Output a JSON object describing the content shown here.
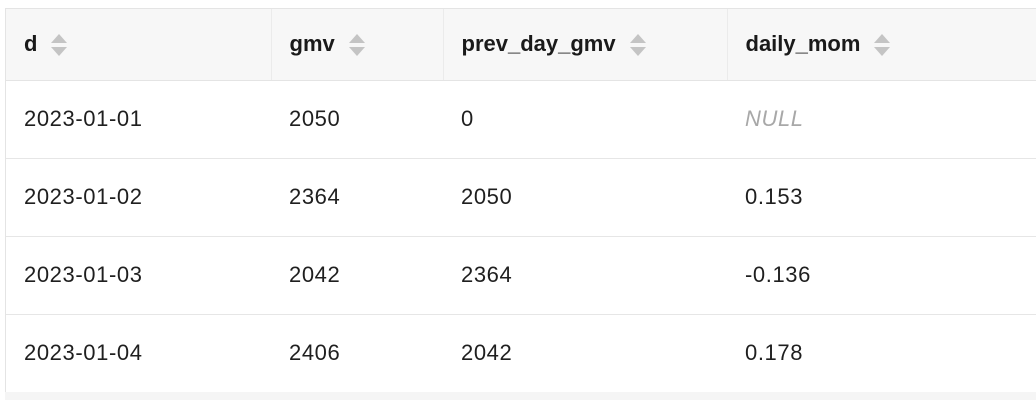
{
  "table": {
    "columns": [
      {
        "label": "d",
        "sortable": true
      },
      {
        "label": "gmv",
        "sortable": true
      },
      {
        "label": "prev_day_gmv",
        "sortable": true
      },
      {
        "label": "daily_mom",
        "sortable": true
      }
    ],
    "rows": [
      [
        "2023-01-01",
        "2050",
        "0",
        "NULL"
      ],
      [
        "2023-01-02",
        "2364",
        "2050",
        "0.153"
      ],
      [
        "2023-01-03",
        "2042",
        "2364",
        "-0.136"
      ],
      [
        "2023-01-04",
        "2406",
        "2042",
        "0.178"
      ]
    ],
    "colors": {
      "header_bg": "#f7f7f7",
      "null_text": "#a8a8a8",
      "sort_icon": "#c4c4c4"
    }
  }
}
